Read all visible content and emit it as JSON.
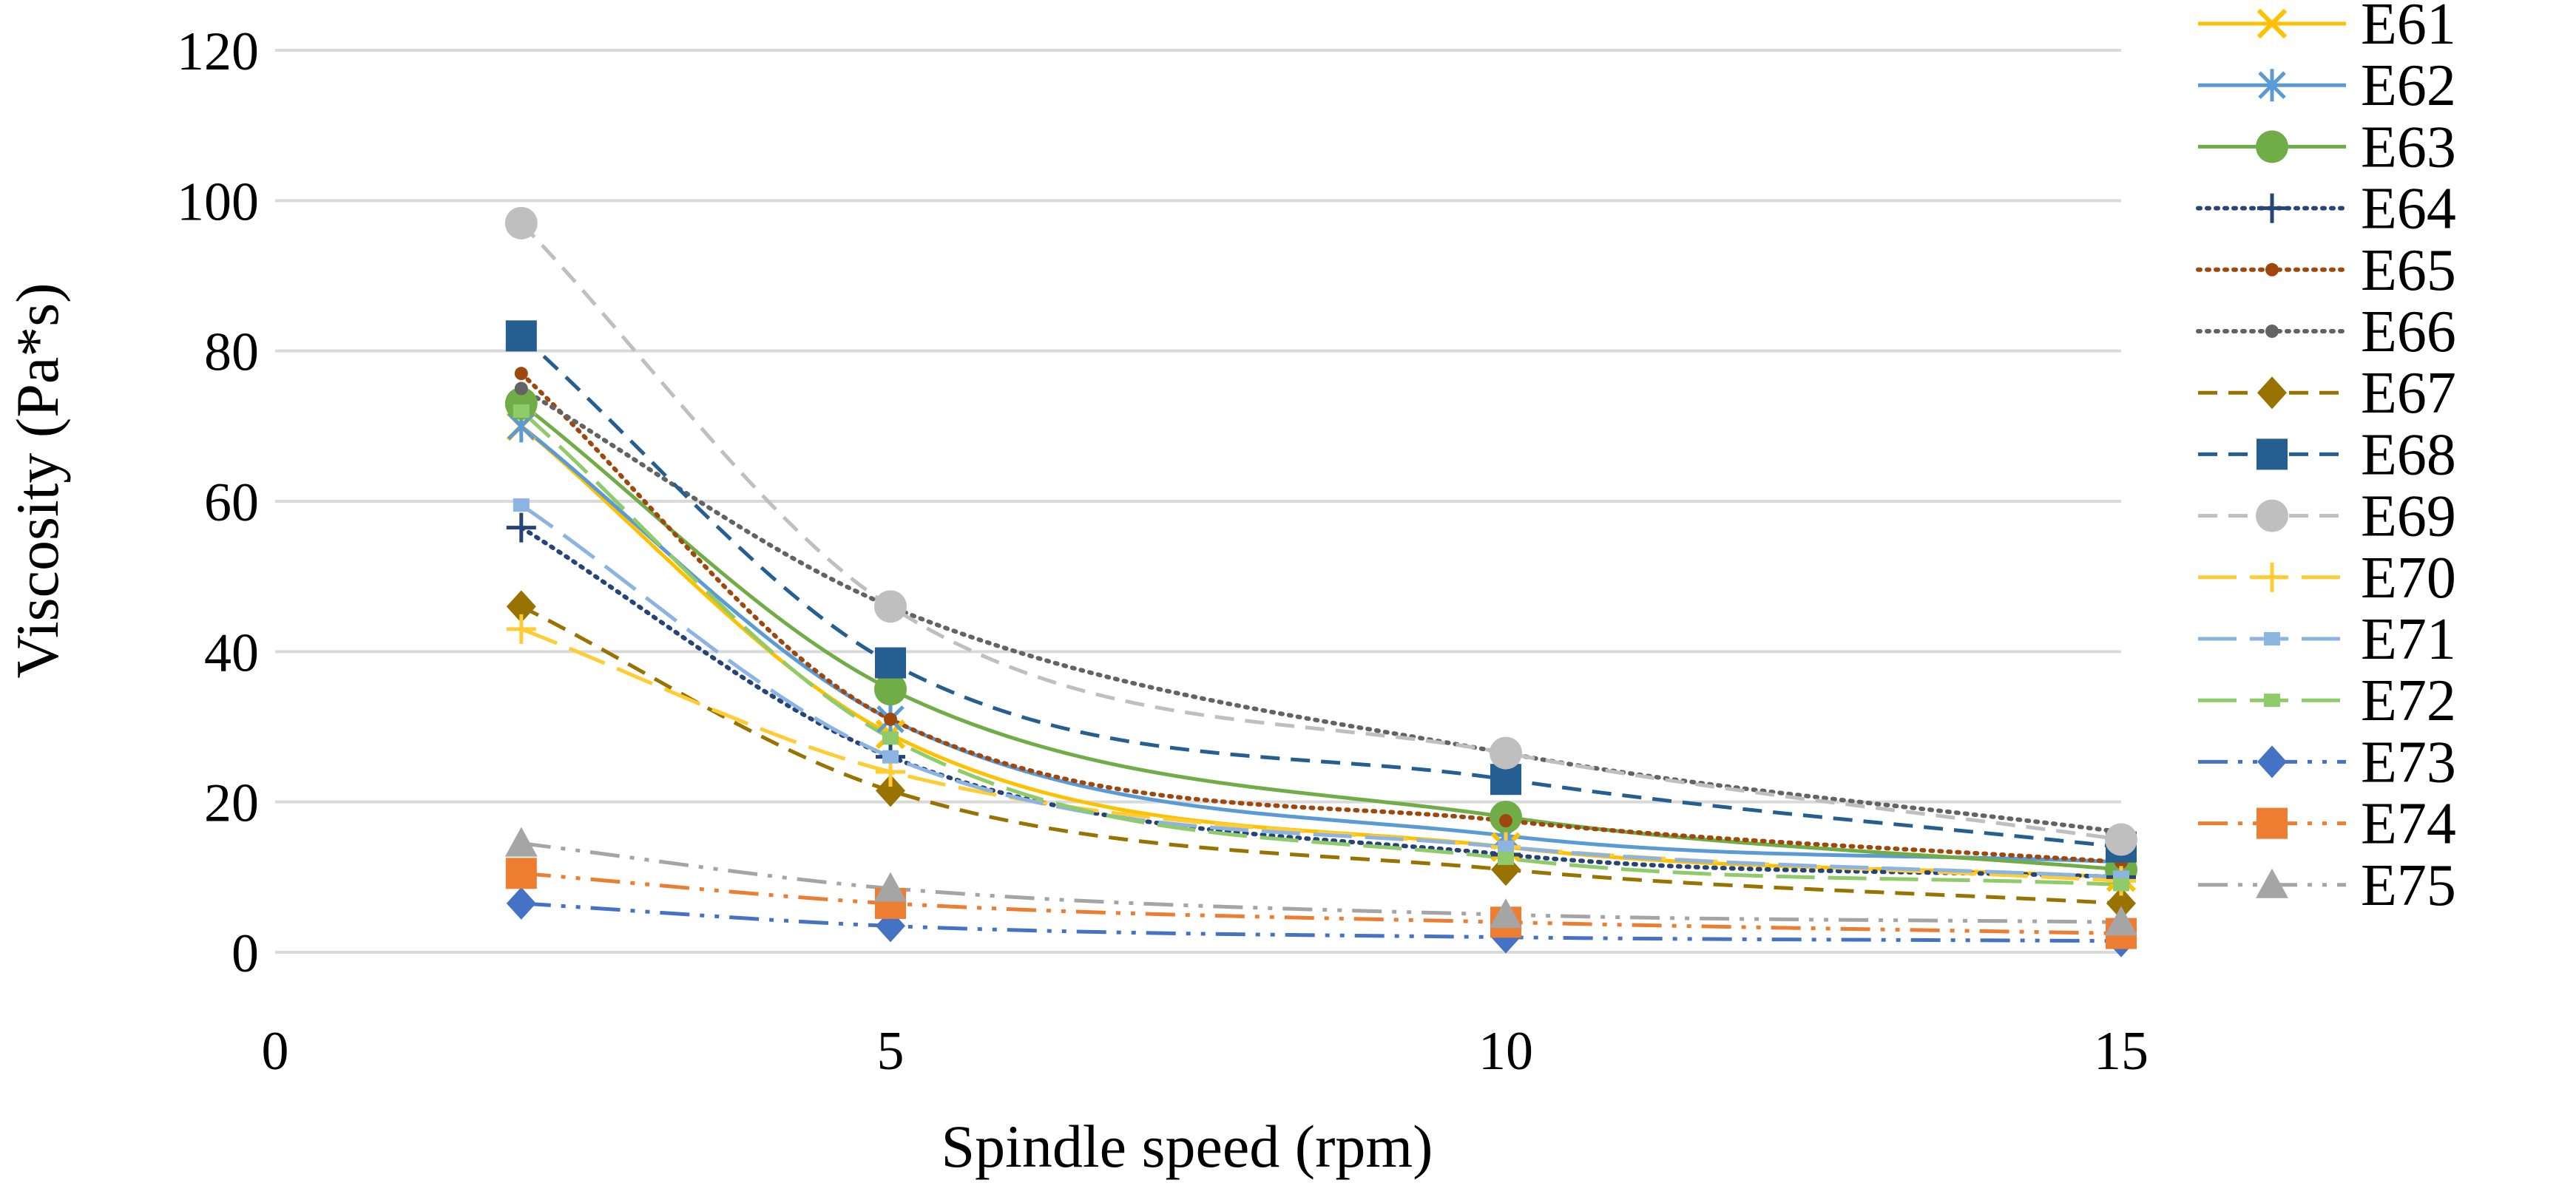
{
  "chart_data": {
    "type": "line",
    "xlabel": "Spindle speed (rpm)",
    "ylabel": "Viscosity (Pa*s)",
    "xlim": [
      0,
      15
    ],
    "ylim": [
      0,
      120
    ],
    "x_ticks": [
      "0",
      "5",
      "10",
      "15"
    ],
    "y_ticks": [
      "0",
      "20",
      "40",
      "60",
      "80",
      "100",
      "120"
    ],
    "x_tick_values": [
      0,
      5,
      10,
      15
    ],
    "y_tick_values": [
      0,
      20,
      40,
      60,
      80,
      100,
      120
    ],
    "grid": "horizontal",
    "legend_position": "right",
    "x": [
      2,
      5,
      10,
      15
    ],
    "series": [
      {
        "name": "E61",
        "values": [
          70,
          29,
          14,
          10
        ],
        "color": "#FFC000",
        "dash": "solid",
        "marker": "x"
      },
      {
        "name": "E62",
        "values": [
          70,
          31,
          15.5,
          12
        ],
        "color": "#5B9BD5",
        "dash": "solid",
        "marker": "star"
      },
      {
        "name": "E63",
        "values": [
          73,
          35,
          18,
          11
        ],
        "color": "#70AD47",
        "dash": "solid",
        "marker": "circle"
      },
      {
        "name": "E64",
        "values": [
          56.5,
          26,
          13,
          10
        ],
        "color": "#264478",
        "dash": "dot",
        "marker": "plus"
      },
      {
        "name": "E65",
        "values": [
          77,
          31,
          17.5,
          12
        ],
        "color": "#9E480E",
        "dash": "dot",
        "marker": "dot"
      },
      {
        "name": "E66",
        "values": [
          75,
          46,
          26.5,
          16
        ],
        "color": "#636363",
        "dash": "dot",
        "marker": "dot"
      },
      {
        "name": "E67",
        "values": [
          46,
          21.5,
          11,
          6.5
        ],
        "color": "#997300",
        "dash": "dash",
        "marker": "diamond"
      },
      {
        "name": "E68",
        "values": [
          82,
          38.5,
          23,
          14
        ],
        "color": "#255E91",
        "dash": "dash",
        "marker": "square"
      },
      {
        "name": "E69",
        "values": [
          97,
          46,
          26.5,
          15
        ],
        "color": "#BFBFBF",
        "dash": "dash",
        "marker": "circle"
      },
      {
        "name": "E70",
        "values": [
          43,
          24,
          14,
          9.5
        ],
        "color": "#FFCD33",
        "dash": "longdash",
        "marker": "plus"
      },
      {
        "name": "E71",
        "values": [
          59.5,
          26,
          14,
          10
        ],
        "color": "#8CB4E2",
        "dash": "longdash",
        "marker": "smallsquare"
      },
      {
        "name": "E72",
        "values": [
          72,
          28.5,
          12.5,
          9
        ],
        "color": "#8FCA6B",
        "dash": "longdash",
        "marker": "smallsquare"
      },
      {
        "name": "E73",
        "values": [
          6.5,
          3.5,
          2,
          1.5
        ],
        "color": "#4472C4",
        "dash": "dashdotdot",
        "marker": "diamond"
      },
      {
        "name": "E74",
        "values": [
          10.5,
          6.5,
          4,
          2.5
        ],
        "color": "#ED7D31",
        "dash": "dashdotdot",
        "marker": "square"
      },
      {
        "name": "E75",
        "values": [
          14.5,
          8.5,
          5,
          4
        ],
        "color": "#A5A5A5",
        "dash": "dashdotdot",
        "marker": "triangle"
      }
    ]
  }
}
